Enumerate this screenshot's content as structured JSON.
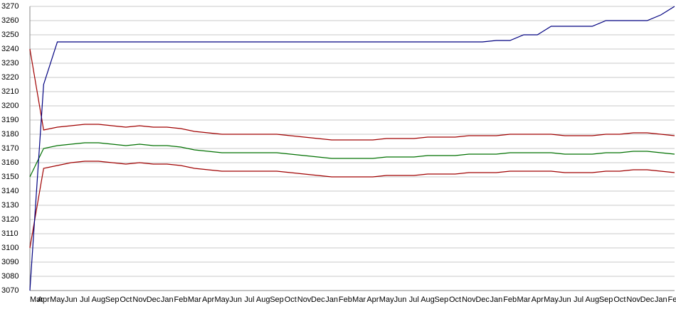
{
  "chart_data": {
    "type": "line",
    "categories": [
      "Mar",
      "Apr",
      "May",
      "Jun",
      "Jul",
      "Aug",
      "Sep",
      "Oct",
      "Nov",
      "Dec",
      "Jan",
      "Feb",
      "Mar",
      "Apr",
      "May",
      "Jun",
      "Jul",
      "Aug",
      "Sep",
      "Oct",
      "Nov",
      "Dec",
      "Jan",
      "Feb",
      "Mar",
      "Apr",
      "May",
      "Jun",
      "Jul",
      "Aug",
      "Sep",
      "Oct",
      "Nov",
      "Dec",
      "Jan",
      "Feb",
      "Mar",
      "Apr",
      "May",
      "Jun",
      "Jul",
      "Aug",
      "Sep",
      "Oct",
      "Nov",
      "Dec",
      "Jan",
      "Feb"
    ],
    "series": [
      {
        "color": "#a00000",
        "values": [
          3240,
          3183,
          3185,
          3186,
          3187,
          3187,
          3186,
          3185,
          3186,
          3185,
          3185,
          3184,
          3182,
          3181,
          3180,
          3180,
          3180,
          3180,
          3180,
          3179,
          3178,
          3177,
          3176,
          3176,
          3176,
          3176,
          3177,
          3177,
          3177,
          3178,
          3178,
          3178,
          3179,
          3179,
          3179,
          3180,
          3180,
          3180,
          3180,
          3179,
          3179,
          3179,
          3180,
          3180,
          3181,
          3181,
          3180,
          3179
        ]
      },
      {
        "color": "#007000",
        "values": [
          3150,
          3170,
          3172,
          3173,
          3174,
          3174,
          3173,
          3172,
          3173,
          3172,
          3172,
          3171,
          3169,
          3168,
          3167,
          3167,
          3167,
          3167,
          3167,
          3166,
          3165,
          3164,
          3163,
          3163,
          3163,
          3163,
          3164,
          3164,
          3164,
          3165,
          3165,
          3165,
          3166,
          3166,
          3166,
          3167,
          3167,
          3167,
          3167,
          3166,
          3166,
          3166,
          3167,
          3167,
          3168,
          3168,
          3167,
          3166
        ]
      },
      {
        "color": "#a00000",
        "values": [
          3100,
          3156,
          3158,
          3160,
          3161,
          3161,
          3160,
          3159,
          3160,
          3159,
          3159,
          3158,
          3156,
          3155,
          3154,
          3154,
          3154,
          3154,
          3154,
          3153,
          3152,
          3151,
          3150,
          3150,
          3150,
          3150,
          3151,
          3151,
          3151,
          3152,
          3152,
          3152,
          3153,
          3153,
          3153,
          3154,
          3154,
          3154,
          3154,
          3153,
          3153,
          3153,
          3154,
          3154,
          3155,
          3155,
          3154,
          3153
        ]
      },
      {
        "color": "#000080",
        "values": [
          3070,
          3215,
          3245,
          3245,
          3245,
          3245,
          3245,
          3245,
          3245,
          3245,
          3245,
          3245,
          3245,
          3245,
          3245,
          3245,
          3245,
          3245,
          3245,
          3245,
          3245,
          3245,
          3245,
          3245,
          3245,
          3245,
          3245,
          3245,
          3245,
          3245,
          3245,
          3245,
          3245,
          3245,
          3246,
          3246,
          3250,
          3250,
          3256,
          3256,
          3256,
          3256,
          3260,
          3260,
          3260,
          3260,
          3264,
          3270
        ]
      }
    ],
    "ylim": [
      3070,
      3270
    ],
    "yticks": [
      3070,
      3080,
      3090,
      3100,
      3110,
      3120,
      3130,
      3140,
      3150,
      3160,
      3170,
      3180,
      3190,
      3200,
      3210,
      3220,
      3230,
      3240,
      3250,
      3260,
      3270
    ],
    "grid": true
  }
}
